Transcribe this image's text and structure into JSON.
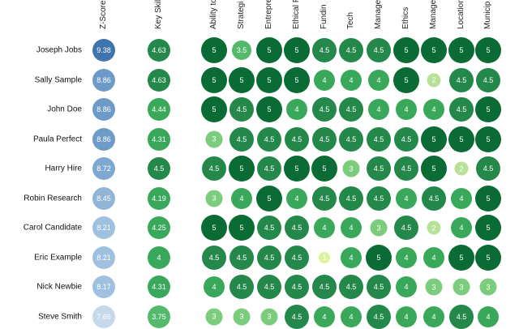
{
  "columns": [
    "Z-Score",
    "Key Skill",
    "Ability to",
    "Strategi",
    "Entrepre",
    "Ethical F",
    "Fundin",
    "Tech",
    "Manage",
    "Ethics",
    "Manage",
    "Location",
    "Municip"
  ],
  "rows": [
    {
      "name": "Joseph Jobs",
      "z": "9.38",
      "skill": "4.63",
      "scores": [
        "5",
        "3.5",
        "5",
        "5",
        "4.5",
        "4.5",
        "4.5",
        "5",
        "5",
        "5",
        "5"
      ]
    },
    {
      "name": "Sally Sample",
      "z": "8.86",
      "skill": "4.63",
      "scores": [
        "5",
        "5",
        "5",
        "5",
        "4",
        "4",
        "4",
        "5",
        "2",
        "4.5",
        "4.5"
      ]
    },
    {
      "name": "John Doe",
      "z": "8.86",
      "skill": "4.44",
      "scores": [
        "5",
        "4.5",
        "5",
        "4",
        "4.5",
        "4.5",
        "4",
        "4",
        "4",
        "4.5",
        "5"
      ]
    },
    {
      "name": "Paula Perfect",
      "z": "8.86",
      "skill": "4.31",
      "scores": [
        "3",
        "4.5",
        "4.5",
        "4.5",
        "4.5",
        "4.5",
        "4.5",
        "4.5",
        "5",
        "5",
        "5"
      ]
    },
    {
      "name": "Harry Hire",
      "z": "8.72",
      "skill": "4.5",
      "scores": [
        "4.5",
        "5",
        "4.5",
        "5",
        "5",
        "3",
        "4.5",
        "4.5",
        "5",
        "2",
        "4.5"
      ]
    },
    {
      "name": "Robin Research",
      "z": "8.45",
      "skill": "4.19",
      "scores": [
        "3",
        "4",
        "5",
        "4",
        "4.5",
        "4.5",
        "4.5",
        "4",
        "4.5",
        "4",
        "5"
      ]
    },
    {
      "name": "Carol Candidate",
      "z": "8.21",
      "skill": "4.25",
      "scores": [
        "5",
        "5",
        "4.5",
        "4.5",
        "4",
        "4",
        "3",
        "4.5",
        "2",
        "4",
        "5"
      ]
    },
    {
      "name": "Eric Example",
      "z": "8.21",
      "skill": "4",
      "scores": [
        "4.5",
        "4.5",
        "4.5",
        "4.5",
        "1",
        "4",
        "5",
        "4",
        "4",
        "5",
        "5"
      ]
    },
    {
      "name": "Nick Newbie",
      "z": "8.17",
      "skill": "4.31",
      "scores": [
        "4",
        "4.5",
        "4.5",
        "4.5",
        "4.5",
        "4.5",
        "4.5",
        "4",
        "3",
        "3",
        "3"
      ]
    },
    {
      "name": "Steve Smith",
      "z": "7.66",
      "skill": "3.75",
      "scores": [
        "3",
        "3",
        "3",
        "4.5",
        "4",
        "4",
        "4.5",
        "4",
        "4",
        "4.5",
        "4"
      ]
    }
  ]
}
